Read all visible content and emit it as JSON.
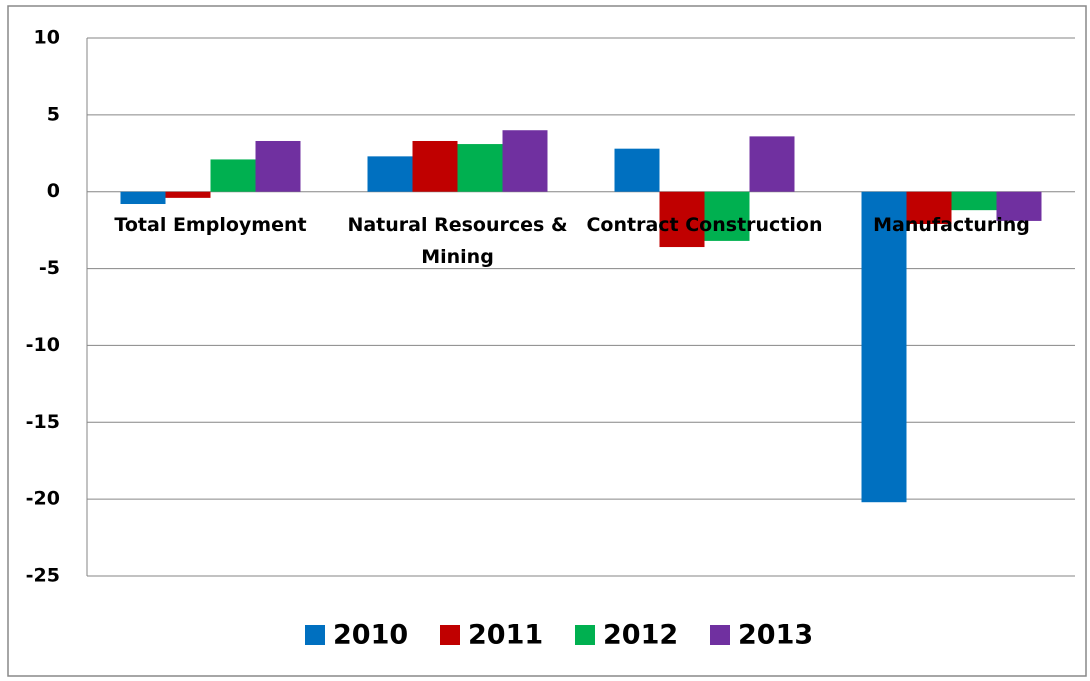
{
  "chart_data": {
    "type": "bar",
    "categories": [
      "Total Employment",
      "Natural Resources & Mining",
      "Contract Construction",
      "Manufacturing"
    ],
    "series": [
      {
        "name": "2010",
        "color": "#0070c0",
        "values": [
          -0.8,
          2.3,
          2.8,
          -20.2
        ]
      },
      {
        "name": "2011",
        "color": "#c00000",
        "values": [
          -0.4,
          3.3,
          -3.6,
          -2.1
        ]
      },
      {
        "name": "2012",
        "color": "#00b050",
        "values": [
          2.1,
          3.1,
          -3.2,
          -1.2
        ]
      },
      {
        "name": "2013",
        "color": "#7030a0",
        "values": [
          3.3,
          4.0,
          3.6,
          -1.9
        ]
      }
    ],
    "ylim": [
      -25,
      10
    ],
    "yticks": [
      -25,
      -20,
      -15,
      -10,
      -5,
      0,
      5,
      10
    ],
    "grid": true,
    "legend": "bottom"
  }
}
